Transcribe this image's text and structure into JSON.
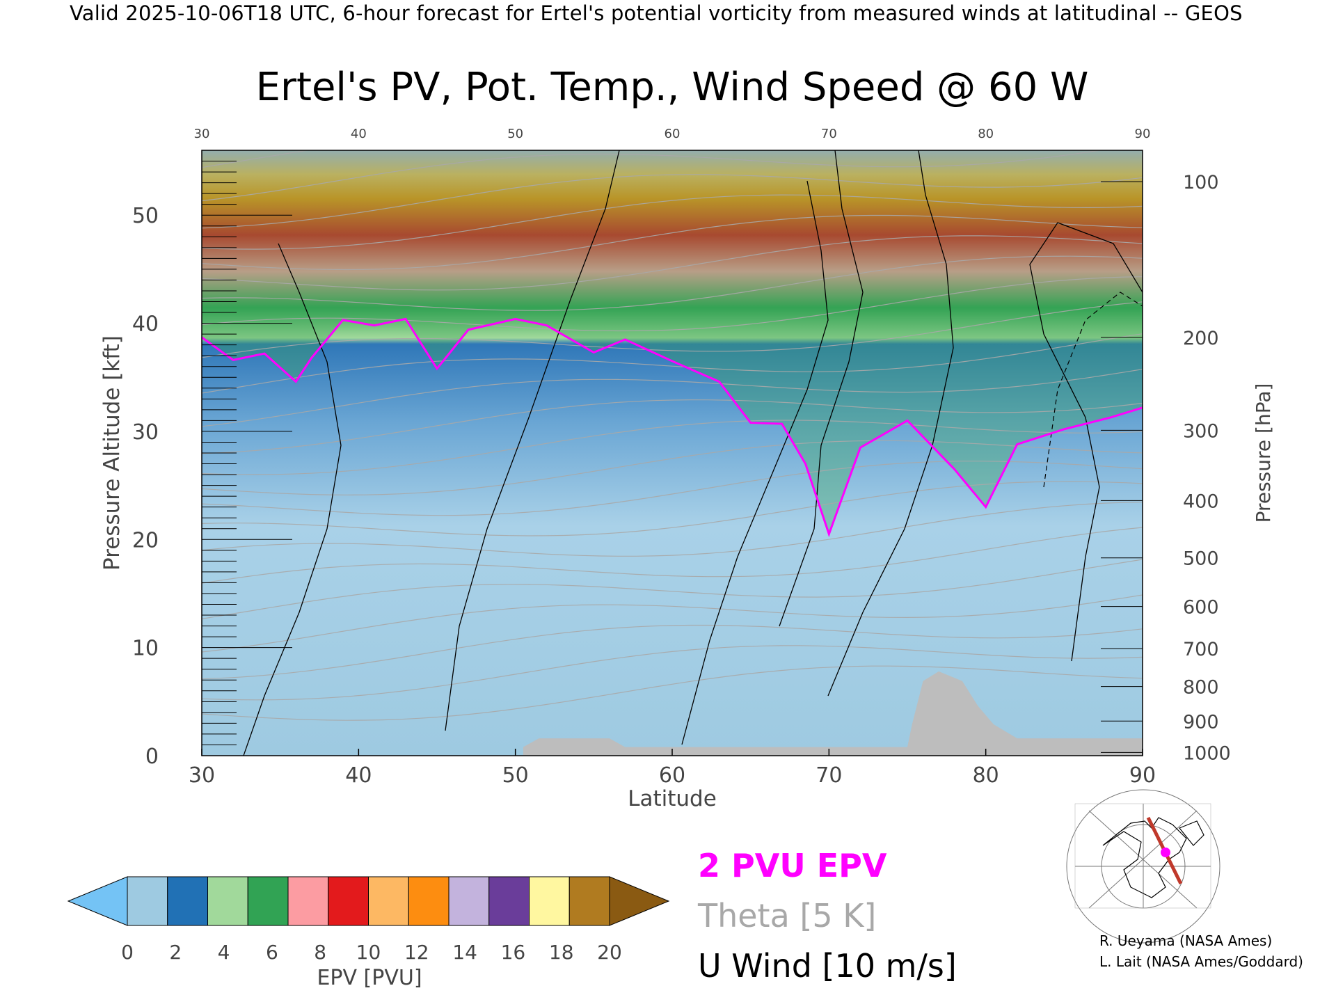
{
  "header": {
    "valid_line": "Valid 2025-10-06T18 UTC, 6-hour forecast for Ertel's potential vorticity from measured winds at latitudinal -- GEOS",
    "title": "Ertel's PV, Pot. Temp., Wind Speed @ 60 W"
  },
  "chart_data": {
    "type": "heatmap",
    "title": "Ertel's PV, Pot. Temp., Wind Speed @ 60 W",
    "xlabel": "Latitude",
    "ylabel": "Pressure Altitude [kft]",
    "y2label": "Pressure [hPa]",
    "xlim": [
      30,
      90
    ],
    "ylim": [
      0,
      56
    ],
    "x_ticks": [
      30,
      40,
      50,
      60,
      70,
      80,
      90
    ],
    "x_tick_labels": [
      "30",
      "40",
      "50",
      "60",
      "70",
      "80",
      "90"
    ],
    "y_ticks": [
      0,
      10,
      20,
      30,
      40,
      50
    ],
    "y_tick_labels": [
      "0",
      "10",
      "20",
      "30",
      "40",
      "50"
    ],
    "pressure_ticks": [
      {
        "label": "100",
        "kft": 53.1
      },
      {
        "label": "200",
        "kft": 38.7
      },
      {
        "label": "300",
        "kft": 30.1
      },
      {
        "label": "400",
        "kft": 23.6
      },
      {
        "label": "500",
        "kft": 18.3
      },
      {
        "label": "600",
        "kft": 13.8
      },
      {
        "label": "700",
        "kft": 9.9
      },
      {
        "label": "800",
        "kft": 6.4
      },
      {
        "label": "900",
        "kft": 3.2
      },
      {
        "label": "1000",
        "kft": 0.3
      }
    ],
    "tropopause_2pvu_kft": [
      {
        "lat": 30,
        "kft": 38.7
      },
      {
        "lat": 32,
        "kft": 36.6
      },
      {
        "lat": 34,
        "kft": 37.2
      },
      {
        "lat": 36,
        "kft": 34.6
      },
      {
        "lat": 37,
        "kft": 36.8
      },
      {
        "lat": 39,
        "kft": 40.3
      },
      {
        "lat": 41,
        "kft": 39.8
      },
      {
        "lat": 43,
        "kft": 40.4
      },
      {
        "lat": 45,
        "kft": 35.8
      },
      {
        "lat": 47,
        "kft": 39.4
      },
      {
        "lat": 50,
        "kft": 40.4
      },
      {
        "lat": 52,
        "kft": 39.8
      },
      {
        "lat": 55,
        "kft": 37.3
      },
      {
        "lat": 57,
        "kft": 38.5
      },
      {
        "lat": 60,
        "kft": 36.5
      },
      {
        "lat": 63,
        "kft": 34.6
      },
      {
        "lat": 65,
        "kft": 30.8
      },
      {
        "lat": 67,
        "kft": 30.7
      },
      {
        "lat": 68.5,
        "kft": 27.0
      },
      {
        "lat": 70,
        "kft": 20.5
      },
      {
        "lat": 72,
        "kft": 28.5
      },
      {
        "lat": 75,
        "kft": 31.0
      },
      {
        "lat": 78,
        "kft": 26.5
      },
      {
        "lat": 80,
        "kft": 23.0
      },
      {
        "lat": 82,
        "kft": 28.8
      },
      {
        "lat": 85,
        "kft": 30.2
      },
      {
        "lat": 88,
        "kft": 31.3
      },
      {
        "lat": 90,
        "kft": 32.2
      }
    ],
    "terrain_kft": [
      {
        "lat": 50.5,
        "kft": 0.8
      },
      {
        "lat": 51.5,
        "kft": 1.6
      },
      {
        "lat": 56,
        "kft": 1.6
      },
      {
        "lat": 57,
        "kft": 0.8
      },
      {
        "lat": 61,
        "kft": 0.8
      },
      {
        "lat": 75,
        "kft": 0.8
      },
      {
        "lat": 75.3,
        "kft": 2.9
      },
      {
        "lat": 76,
        "kft": 6.9
      },
      {
        "lat": 77,
        "kft": 7.8
      },
      {
        "lat": 78.5,
        "kft": 6.9
      },
      {
        "lat": 79.5,
        "kft": 4.6
      },
      {
        "lat": 80.5,
        "kft": 2.9
      },
      {
        "lat": 82,
        "kft": 1.6
      },
      {
        "lat": 90,
        "kft": 1.6
      }
    ],
    "colorbar": {
      "label": "EPV [PVU]",
      "ticks": [
        "0",
        "2",
        "4",
        "6",
        "8",
        "10",
        "12",
        "14",
        "16",
        "18",
        "20"
      ],
      "colors": [
        "#9ecae1",
        "#2171b5",
        "#a1d99b",
        "#31a354",
        "#fc9ca2",
        "#e31a1c",
        "#fdb863",
        "#fd8d10",
        "#c3b3dd",
        "#6a3d9a",
        "#fff7a0",
        "#b07b20"
      ],
      "under_color": "#74c3f5",
      "over_color": "#8a5a12"
    },
    "legend": [
      {
        "label": "2 PVU EPV",
        "color": "#ff00ff"
      },
      {
        "label": "Theta [5 K]",
        "color": "#a8a8a8"
      },
      {
        "label": "U Wind [10 m/s]",
        "color": "#000000"
      }
    ],
    "grid": false
  },
  "credits": {
    "line1": "R. Ueyama (NASA Ames)",
    "line2": "L. Lait (NASA Ames/Goddard)"
  }
}
